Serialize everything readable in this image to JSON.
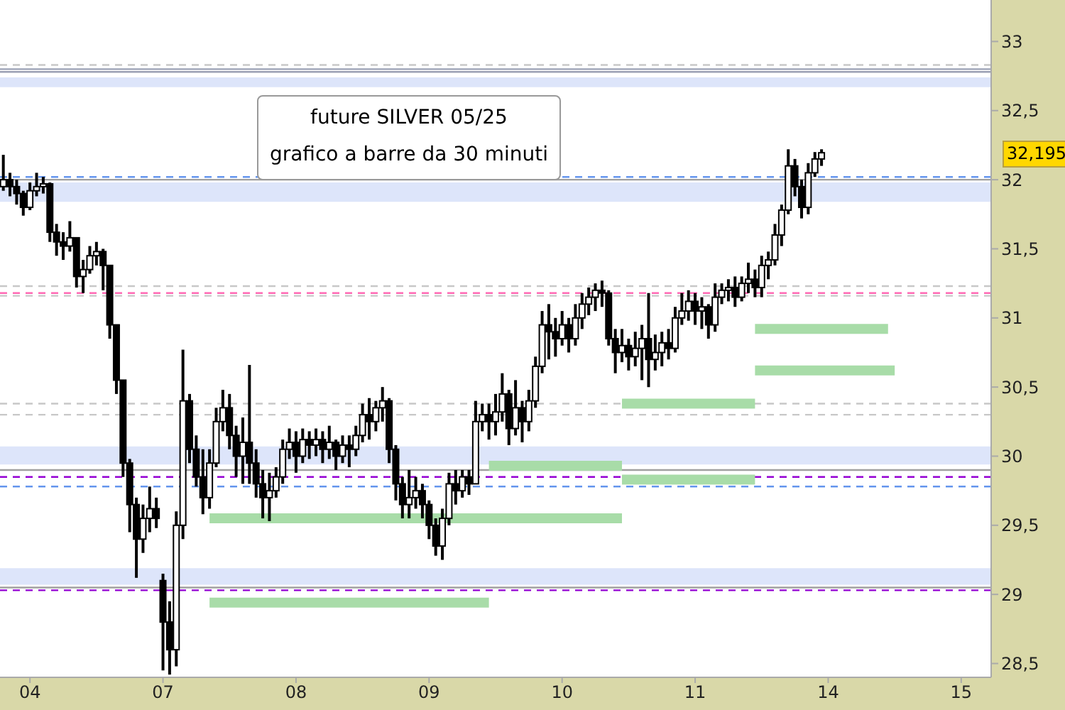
{
  "chart_data": {
    "type": "candlestick",
    "title": "future SILVER 05/25",
    "subtitle": "grafico a barre da 30 minuti",
    "categories": [
      null,
      null,
      null,
      null,
      "04",
      null,
      null,
      null,
      null,
      null,
      null,
      null,
      null,
      null,
      null,
      null,
      null,
      null,
      null,
      null,
      null,
      null,
      null,
      null,
      "07",
      null,
      null,
      null,
      null,
      null,
      null,
      null,
      null,
      null,
      null,
      null,
      null,
      null,
      null,
      null,
      null,
      null,
      null,
      null,
      "08",
      null,
      null,
      null,
      null,
      null,
      null,
      null,
      null,
      null,
      null,
      null,
      null,
      null,
      null,
      null,
      null,
      null,
      null,
      null,
      "09",
      null,
      null,
      null,
      null,
      null,
      null,
      null,
      null,
      null,
      null,
      null,
      null,
      null,
      null,
      null,
      null,
      null,
      null,
      null,
      "10",
      null,
      null,
      null,
      null,
      null,
      null,
      null,
      null,
      null,
      null,
      null,
      null,
      null,
      null,
      null,
      null,
      null,
      null,
      null,
      "11",
      null,
      null,
      null,
      null,
      null,
      null,
      null,
      null,
      null,
      null,
      null,
      null,
      null,
      null,
      null,
      null,
      null,
      null,
      null,
      "14",
      null,
      null,
      null,
      null,
      null,
      null,
      null,
      null,
      null,
      null,
      null,
      null,
      null,
      null,
      null,
      null,
      null,
      null,
      null,
      "15",
      null,
      null,
      null,
      null
    ],
    "ohlc": [
      [
        31.95,
        32.18,
        31.92,
        32.0
      ],
      [
        32.0,
        32.05,
        31.88,
        31.95
      ],
      [
        31.95,
        32.0,
        31.82,
        31.9
      ],
      [
        31.9,
        31.92,
        31.74,
        31.8
      ],
      [
        31.8,
        31.98,
        31.78,
        31.92
      ],
      [
        31.92,
        32.05,
        31.88,
        31.95
      ],
      [
        31.95,
        32.02,
        31.9,
        31.97
      ],
      [
        31.97,
        31.98,
        31.55,
        31.62
      ],
      [
        31.62,
        31.68,
        31.45,
        31.55
      ],
      [
        31.55,
        31.62,
        31.42,
        31.52
      ],
      [
        31.52,
        31.7,
        31.48,
        31.58
      ],
      [
        31.58,
        31.58,
        31.22,
        31.3
      ],
      [
        31.3,
        31.42,
        31.18,
        31.35
      ],
      [
        31.35,
        31.52,
        31.32,
        31.45
      ],
      [
        31.45,
        31.55,
        31.38,
        31.48
      ],
      [
        31.48,
        31.5,
        31.2,
        31.38
      ],
      [
        31.38,
        31.38,
        30.85,
        30.95
      ],
      [
        30.95,
        30.95,
        30.45,
        30.55
      ],
      [
        30.55,
        30.55,
        29.85,
        29.95
      ],
      [
        29.95,
        29.98,
        29.45,
        29.65
      ],
      [
        29.65,
        29.7,
        29.12,
        29.4
      ],
      [
        29.4,
        29.65,
        29.3,
        29.55
      ],
      [
        29.55,
        29.78,
        29.45,
        29.62
      ],
      [
        29.62,
        29.7,
        29.48,
        29.55
      ],
      [
        29.1,
        29.15,
        28.45,
        28.8
      ],
      [
        28.8,
        28.95,
        28.42,
        28.6
      ],
      [
        28.6,
        29.6,
        28.48,
        29.5
      ],
      [
        29.5,
        30.77,
        29.4,
        30.4
      ],
      [
        30.4,
        30.45,
        29.95,
        30.05
      ],
      [
        30.05,
        30.15,
        29.78,
        29.85
      ],
      [
        29.85,
        30.05,
        29.58,
        29.7
      ],
      [
        29.7,
        30.05,
        29.62,
        29.95
      ],
      [
        29.95,
        30.35,
        29.92,
        30.25
      ],
      [
        30.25,
        30.48,
        30.18,
        30.35
      ],
      [
        30.35,
        30.45,
        30.05,
        30.15
      ],
      [
        30.15,
        30.22,
        29.85,
        30.0
      ],
      [
        30.0,
        30.28,
        29.8,
        30.1
      ],
      [
        30.1,
        30.66,
        29.8,
        29.95
      ],
      [
        29.95,
        30.05,
        29.7,
        29.8
      ],
      [
        29.8,
        29.9,
        29.55,
        29.7
      ],
      [
        29.7,
        29.88,
        29.53,
        29.75
      ],
      [
        29.75,
        29.92,
        29.7,
        29.85
      ],
      [
        29.85,
        30.12,
        29.8,
        30.05
      ],
      [
        30.05,
        30.2,
        29.98,
        30.1
      ],
      [
        30.1,
        30.18,
        29.88,
        30.0
      ],
      [
        30.0,
        30.2,
        29.95,
        30.12
      ],
      [
        30.12,
        30.18,
        29.98,
        30.08
      ],
      [
        30.08,
        30.2,
        30.0,
        30.12
      ],
      [
        30.12,
        30.18,
        29.95,
        30.05
      ],
      [
        30.05,
        30.22,
        29.98,
        30.1
      ],
      [
        30.1,
        30.12,
        29.9,
        30.0
      ],
      [
        30.0,
        30.15,
        29.95,
        30.08
      ],
      [
        30.08,
        30.15,
        29.92,
        30.05
      ],
      [
        30.05,
        30.22,
        30.0,
        30.15
      ],
      [
        30.15,
        30.38,
        30.1,
        30.3
      ],
      [
        30.3,
        30.42,
        30.12,
        30.25
      ],
      [
        30.25,
        30.4,
        30.18,
        30.35
      ],
      [
        30.35,
        30.5,
        30.25,
        30.4
      ],
      [
        30.4,
        30.42,
        29.95,
        30.05
      ],
      [
        30.05,
        30.08,
        29.68,
        29.8
      ],
      [
        29.8,
        29.85,
        29.55,
        29.65
      ],
      [
        29.65,
        29.9,
        29.55,
        29.7
      ],
      [
        29.7,
        29.85,
        29.62,
        29.75
      ],
      [
        29.75,
        29.8,
        29.55,
        29.65
      ],
      [
        29.65,
        29.68,
        29.4,
        29.5
      ],
      [
        29.5,
        29.55,
        29.28,
        29.35
      ],
      [
        29.35,
        29.62,
        29.25,
        29.55
      ],
      [
        29.55,
        29.88,
        29.5,
        29.8
      ],
      [
        29.8,
        29.9,
        29.65,
        29.75
      ],
      [
        29.75,
        29.9,
        29.7,
        29.85
      ],
      [
        29.85,
        29.9,
        29.72,
        29.8
      ],
      [
        29.8,
        30.4,
        29.8,
        30.25
      ],
      [
        30.25,
        30.38,
        30.18,
        30.3
      ],
      [
        30.3,
        30.38,
        30.12,
        30.25
      ],
      [
        30.25,
        30.45,
        30.15,
        30.32
      ],
      [
        30.32,
        30.6,
        30.25,
        30.45
      ],
      [
        30.45,
        30.48,
        30.08,
        30.2
      ],
      [
        30.2,
        30.55,
        30.15,
        30.35
      ],
      [
        30.35,
        30.4,
        30.1,
        30.25
      ],
      [
        30.25,
        30.48,
        30.18,
        30.4
      ],
      [
        30.4,
        30.72,
        30.35,
        30.65
      ],
      [
        30.65,
        31.05,
        30.6,
        30.95
      ],
      [
        30.95,
        31.1,
        30.7,
        30.9
      ],
      [
        30.9,
        31.0,
        30.72,
        30.85
      ],
      [
        30.85,
        31.05,
        30.8,
        30.95
      ],
      [
        30.95,
        31.0,
        30.75,
        30.85
      ],
      [
        30.85,
        31.1,
        30.8,
        31.0
      ],
      [
        31.0,
        31.18,
        30.92,
        31.1
      ],
      [
        31.1,
        31.22,
        31.02,
        31.15
      ],
      [
        31.15,
        31.25,
        31.05,
        31.2
      ],
      [
        31.2,
        31.27,
        31.08,
        31.18
      ],
      [
        31.18,
        31.2,
        30.8,
        30.85
      ],
      [
        30.85,
        30.92,
        30.6,
        30.75
      ],
      [
        30.75,
        30.92,
        30.68,
        30.8
      ],
      [
        30.8,
        30.85,
        30.62,
        30.72
      ],
      [
        30.72,
        30.9,
        30.65,
        30.78
      ],
      [
        30.78,
        30.95,
        30.55,
        30.85
      ],
      [
        30.85,
        31.18,
        30.5,
        30.7
      ],
      [
        30.7,
        30.88,
        30.62,
        30.75
      ],
      [
        30.75,
        30.9,
        30.65,
        30.82
      ],
      [
        30.82,
        30.92,
        30.7,
        30.78
      ],
      [
        30.78,
        31.08,
        30.75,
        31.0
      ],
      [
        31.0,
        31.18,
        30.95,
        31.05
      ],
      [
        31.05,
        31.2,
        30.98,
        31.12
      ],
      [
        31.12,
        31.18,
        30.95,
        31.05
      ],
      [
        31.05,
        31.15,
        30.92,
        31.08
      ],
      [
        31.08,
        31.1,
        30.85,
        30.95
      ],
      [
        30.95,
        31.25,
        30.9,
        31.15
      ],
      [
        31.15,
        31.25,
        31.1,
        31.2
      ],
      [
        31.2,
        31.28,
        31.12,
        31.22
      ],
      [
        31.22,
        31.3,
        31.08,
        31.15
      ],
      [
        31.15,
        31.3,
        31.12,
        31.25
      ],
      [
        31.25,
        31.4,
        31.18,
        31.28
      ],
      [
        31.28,
        31.35,
        31.15,
        31.22
      ],
      [
        31.22,
        31.45,
        31.15,
        31.38
      ],
      [
        31.38,
        31.48,
        31.28,
        31.42
      ],
      [
        31.42,
        31.68,
        31.38,
        31.6
      ],
      [
        31.6,
        31.82,
        31.52,
        31.78
      ],
      [
        31.78,
        32.22,
        31.75,
        32.1
      ],
      [
        32.1,
        32.15,
        31.88,
        31.95
      ],
      [
        31.95,
        32.0,
        31.72,
        31.8
      ],
      [
        31.8,
        32.12,
        31.75,
        32.05
      ],
      [
        32.05,
        32.2,
        32.02,
        32.15
      ],
      [
        32.15,
        32.22,
        32.1,
        32.195
      ],
      null,
      null,
      null,
      null,
      null,
      null,
      null,
      null,
      null,
      null,
      null,
      null,
      null,
      null,
      null,
      null,
      null,
      null,
      null,
      null,
      null,
      null,
      null,
      null,
      null
    ],
    "color": "#000000",
    "series": [
      {
        "type": "line",
        "color": "#a8dca8",
        "values": [
          null,
          null,
          null,
          null,
          null,
          null,
          null,
          null,
          null,
          null,
          null,
          null,
          null,
          null,
          null,
          null,
          null,
          null,
          null,
          null,
          null,
          null,
          null,
          null,
          null,
          null,
          null,
          null,
          null,
          null,
          null,
          29.55,
          29.55,
          29.55,
          29.55,
          29.55,
          29.55,
          29.55,
          29.55,
          29.55,
          29.55,
          29.55,
          29.55,
          29.55,
          29.55,
          29.55,
          29.55,
          29.55,
          29.55,
          29.55,
          29.55,
          29.55,
          29.55,
          29.55,
          29.55,
          29.55,
          29.55,
          29.55,
          29.55,
          29.55,
          29.55,
          29.55,
          29.55,
          29.55,
          29.55,
          29.55,
          29.55,
          29.55,
          29.55,
          29.55,
          29.55,
          29.55,
          29.55,
          29.55,
          29.55,
          29.55,
          29.55,
          29.55,
          29.55,
          29.55,
          29.55,
          29.55,
          29.55,
          29.55,
          29.55,
          29.55,
          29.55,
          29.55,
          29.55,
          29.55,
          29.55,
          29.55,
          29.55,
          29.55,
          null,
          null,
          null,
          null,
          null,
          null,
          null,
          null,
          null,
          null,
          null,
          null,
          null,
          null,
          null,
          null,
          null,
          null,
          null,
          null,
          null,
          null,
          null,
          null,
          null,
          null,
          null,
          null,
          null,
          null,
          null,
          null,
          null,
          null,
          null,
          null,
          null,
          null,
          null,
          null,
          null,
          null,
          null,
          null,
          null,
          null,
          null,
          null,
          null,
          null,
          null,
          null,
          null,
          null,
          null
        ]
      },
      {
        "type": "line",
        "color": "#a8dca8",
        "values": [
          null,
          null,
          null,
          null,
          null,
          null,
          null,
          null,
          null,
          null,
          null,
          null,
          null,
          null,
          null,
          null,
          null,
          null,
          null,
          null,
          null,
          null,
          null,
          null,
          null,
          null,
          null,
          null,
          null,
          null,
          null,
          28.94,
          28.94,
          28.94,
          28.94,
          28.94,
          28.94,
          28.94,
          28.94,
          28.94,
          28.94,
          28.94,
          28.94,
          28.94,
          28.94,
          28.94,
          28.94,
          28.94,
          28.94,
          28.94,
          28.94,
          28.94,
          28.94,
          28.94,
          28.94,
          28.94,
          28.94,
          28.94,
          28.94,
          28.94,
          28.94,
          28.94,
          28.94,
          28.94,
          28.94,
          28.94,
          28.94,
          28.94,
          28.94,
          28.94,
          28.94,
          28.94,
          28.94,
          28.94,
          null,
          null,
          null,
          null,
          null,
          null,
          null,
          null,
          null,
          null,
          null,
          null,
          null,
          null,
          null,
          null,
          null,
          null,
          null,
          null,
          null,
          null,
          null,
          null,
          null,
          null,
          null,
          null,
          null,
          null,
          null,
          null,
          null,
          null,
          null,
          null,
          null,
          null,
          null,
          null,
          null,
          null,
          null,
          null,
          null,
          null,
          null,
          null,
          null,
          null,
          null,
          null,
          null,
          null,
          null,
          null,
          null,
          null,
          null,
          null,
          null,
          null,
          null,
          null,
          null,
          null,
          null,
          null,
          null,
          null,
          null,
          null,
          null,
          null,
          null
        ]
      },
      {
        "type": "line",
        "color": "#a8dca8",
        "values": [
          null,
          null,
          null,
          null,
          null,
          null,
          null,
          null,
          null,
          null,
          null,
          null,
          null,
          null,
          null,
          null,
          null,
          null,
          null,
          null,
          null,
          null,
          null,
          null,
          null,
          null,
          null,
          null,
          null,
          null,
          null,
          null,
          null,
          null,
          null,
          null,
          null,
          null,
          null,
          null,
          null,
          null,
          null,
          null,
          null,
          null,
          null,
          null,
          null,
          null,
          null,
          null,
          null,
          null,
          null,
          null,
          null,
          null,
          null,
          null,
          null,
          null,
          null,
          null,
          null,
          null,
          null,
          null,
          null,
          null,
          null,
          null,
          null,
          29.93,
          29.93,
          29.93,
          29.93,
          29.93,
          29.93,
          29.93,
          29.93,
          29.93,
          29.93,
          29.93,
          29.93,
          29.93,
          29.93,
          29.93,
          29.93,
          29.93,
          29.93,
          29.93,
          29.93,
          29.93,
          null,
          null,
          null,
          null,
          null,
          null,
          null,
          null,
          null,
          null,
          null,
          null,
          null,
          null,
          null,
          null,
          null,
          null,
          null,
          null,
          null,
          null,
          null,
          null,
          null,
          null,
          null,
          null,
          null,
          null,
          null,
          null,
          null,
          null,
          null,
          null,
          null,
          null,
          null,
          null,
          null,
          null,
          null,
          null,
          null,
          null,
          null,
          null,
          null,
          null,
          null,
          null,
          null,
          null,
          null
        ]
      },
      {
        "type": "line",
        "color": "#a8dca8",
        "values": [
          null,
          null,
          null,
          null,
          null,
          null,
          null,
          null,
          null,
          null,
          null,
          null,
          null,
          null,
          null,
          null,
          null,
          null,
          null,
          null,
          null,
          null,
          null,
          null,
          null,
          null,
          null,
          null,
          null,
          null,
          null,
          null,
          null,
          null,
          null,
          null,
          null,
          null,
          null,
          null,
          null,
          null,
          null,
          null,
          null,
          null,
          null,
          null,
          null,
          null,
          null,
          null,
          null,
          null,
          null,
          null,
          null,
          null,
          null,
          null,
          null,
          null,
          null,
          null,
          null,
          null,
          null,
          null,
          null,
          null,
          null,
          null,
          null,
          null,
          null,
          null,
          null,
          null,
          null,
          null,
          null,
          null,
          null,
          null,
          null,
          null,
          null,
          null,
          null,
          null,
          null,
          null,
          null,
          30.38,
          30.38,
          30.38,
          30.38,
          30.38,
          30.38,
          30.38,
          30.38,
          30.38,
          30.38,
          30.38,
          30.38,
          30.38,
          30.38,
          30.38,
          30.38,
          30.38,
          30.38,
          30.38,
          30.38,
          30.38,
          null,
          null,
          null,
          null,
          null,
          null,
          null,
          null,
          null,
          null,
          null,
          null,
          null,
          null,
          null,
          null,
          null,
          null,
          null,
          null,
          null,
          null,
          null,
          null,
          null,
          null,
          null,
          null,
          null,
          null,
          null,
          null,
          null,
          null,
          null
        ]
      },
      {
        "type": "line",
        "color": "#a8dca8",
        "values": [
          null,
          null,
          null,
          null,
          null,
          null,
          null,
          null,
          null,
          null,
          null,
          null,
          null,
          null,
          null,
          null,
          null,
          null,
          null,
          null,
          null,
          null,
          null,
          null,
          null,
          null,
          null,
          null,
          null,
          null,
          null,
          null,
          null,
          null,
          null,
          null,
          null,
          null,
          null,
          null,
          null,
          null,
          null,
          null,
          null,
          null,
          null,
          null,
          null,
          null,
          null,
          null,
          null,
          null,
          null,
          null,
          null,
          null,
          null,
          null,
          null,
          null,
          null,
          null,
          null,
          null,
          null,
          null,
          null,
          null,
          null,
          null,
          null,
          null,
          null,
          null,
          null,
          null,
          null,
          null,
          null,
          null,
          null,
          null,
          null,
          null,
          null,
          null,
          null,
          null,
          null,
          null,
          null,
          29.83,
          29.83,
          29.83,
          29.83,
          29.83,
          29.83,
          29.83,
          29.83,
          29.83,
          29.83,
          29.83,
          29.83,
          29.83,
          29.83,
          29.83,
          29.83,
          29.83,
          29.83,
          29.83,
          29.83,
          29.83,
          null,
          null,
          null,
          null,
          null,
          null,
          null,
          null,
          null,
          null,
          null,
          null,
          null,
          null,
          null,
          null,
          null,
          null,
          null,
          null,
          null,
          null,
          null,
          null,
          null,
          null,
          null,
          null,
          null,
          null,
          null,
          null,
          null,
          null,
          null
        ]
      },
      {
        "type": "line",
        "color": "#a8dca8",
        "values": [
          null,
          null,
          null,
          null,
          null,
          null,
          null,
          null,
          null,
          null,
          null,
          null,
          null,
          null,
          null,
          null,
          null,
          null,
          null,
          null,
          null,
          null,
          null,
          null,
          null,
          null,
          null,
          null,
          null,
          null,
          null,
          null,
          null,
          null,
          null,
          null,
          null,
          null,
          null,
          null,
          null,
          null,
          null,
          null,
          null,
          null,
          null,
          null,
          null,
          null,
          null,
          null,
          null,
          null,
          null,
          null,
          null,
          null,
          null,
          null,
          null,
          null,
          null,
          null,
          null,
          null,
          null,
          null,
          null,
          null,
          null,
          null,
          null,
          null,
          null,
          null,
          null,
          null,
          null,
          null,
          null,
          null,
          null,
          null,
          null,
          null,
          null,
          null,
          null,
          null,
          null,
          null,
          null,
          null,
          null,
          null,
          null,
          null,
          null,
          null,
          null,
          null,
          null,
          null,
          null,
          null,
          null,
          null,
          null,
          null,
          null,
          null,
          null,
          30.92,
          30.92,
          30.92,
          30.92,
          30.92,
          30.92,
          30.92,
          30.92,
          30.92,
          30.92,
          30.92,
          30.92,
          30.92,
          30.92,
          30.92,
          30.92,
          30.92,
          30.92,
          30.92,
          30.92,
          30.92,
          null,
          null,
          null,
          null,
          null,
          null,
          null,
          null,
          null,
          null,
          null,
          null,
          null,
          null,
          null
        ]
      },
      {
        "type": "line",
        "color": "#a8dca8",
        "values": [
          null,
          null,
          null,
          null,
          null,
          null,
          null,
          null,
          null,
          null,
          null,
          null,
          null,
          null,
          null,
          null,
          null,
          null,
          null,
          null,
          null,
          null,
          null,
          null,
          null,
          null,
          null,
          null,
          null,
          null,
          null,
          null,
          null,
          null,
          null,
          null,
          null,
          null,
          null,
          null,
          null,
          null,
          null,
          null,
          null,
          null,
          null,
          null,
          null,
          null,
          null,
          null,
          null,
          null,
          null,
          null,
          null,
          null,
          null,
          null,
          null,
          null,
          null,
          null,
          null,
          null,
          null,
          null,
          null,
          null,
          null,
          null,
          null,
          null,
          null,
          null,
          null,
          null,
          null,
          null,
          null,
          null,
          null,
          null,
          null,
          null,
          null,
          null,
          null,
          null,
          null,
          null,
          null,
          null,
          null,
          null,
          null,
          null,
          null,
          null,
          null,
          null,
          null,
          null,
          null,
          null,
          null,
          null,
          null,
          null,
          null,
          null,
          null,
          30.62,
          30.62,
          30.62,
          30.62,
          30.62,
          30.62,
          30.62,
          30.62,
          30.62,
          30.62,
          30.62,
          30.62,
          30.62,
          30.62,
          30.62,
          30.62,
          30.62,
          30.62,
          30.62,
          30.62,
          30.62,
          30.62,
          null,
          null,
          null,
          null,
          null,
          null,
          null,
          null,
          null,
          null,
          null,
          null,
          null,
          null
        ]
      }
    ],
    "marker": "none",
    "bands": [
      {
        "axis": "y",
        "from": 32.67,
        "to": 32.74,
        "color": "#dde5fa"
      },
      {
        "axis": "y",
        "from": 31.84,
        "to": 31.98,
        "color": "#dde5fa"
      },
      {
        "axis": "y",
        "from": 29.94,
        "to": 30.07,
        "color": "#dde5fa"
      },
      {
        "axis": "y",
        "from": 29.07,
        "to": 29.19,
        "color": "#dde5fa"
      }
    ],
    "ref_lines": [
      {
        "axis": "y",
        "value": 32.83,
        "color": "#c8c8c8",
        "line_style": "dashed"
      },
      {
        "axis": "y",
        "value": 32.8,
        "color": "#9aa0b4",
        "line_style": "solid"
      },
      {
        "axis": "y",
        "value": 32.78,
        "color": "#9aa0b4",
        "line_style": "solid"
      },
      {
        "axis": "y",
        "value": 32.02,
        "color": "#6495ed",
        "line_style": "dashed"
      },
      {
        "axis": "y",
        "value": 32.0,
        "color": "#a0a0a0",
        "line_style": "solid"
      },
      {
        "axis": "y",
        "value": 31.23,
        "color": "#c8c8c8",
        "line_style": "dashed"
      },
      {
        "axis": "y",
        "value": 31.18,
        "color": "#ff69b4",
        "line_style": "dashed"
      },
      {
        "axis": "y",
        "value": 31.16,
        "color": "#c8c8c8",
        "line_style": "dashed"
      },
      {
        "axis": "y",
        "value": 30.38,
        "color": "#c8c8c8",
        "line_style": "dashed"
      },
      {
        "axis": "y",
        "value": 30.3,
        "color": "#c8c8c8",
        "line_style": "dashed"
      },
      {
        "axis": "y",
        "value": 29.9,
        "color": "#a0a0a0",
        "line_style": "solid"
      },
      {
        "axis": "y",
        "value": 29.85,
        "color": "#9400d3",
        "line_style": "dashed"
      },
      {
        "axis": "y",
        "value": 29.78,
        "color": "#6495ed",
        "line_style": "dashed"
      },
      {
        "axis": "y",
        "value": 29.05,
        "color": "#a0a0a0",
        "line_style": "solid"
      },
      {
        "axis": "y",
        "value": 29.03,
        "color": "#9400d3",
        "line_style": "dashed"
      }
    ],
    "annotations": [
      "32,195"
    ],
    "ylim": [
      28.4,
      33.3
    ],
    "yticks": [
      {
        "value": 28.5,
        "label": "28,5"
      },
      29,
      {
        "value": 29.5,
        "label": "29,5"
      },
      30,
      {
        "value": 30.5,
        "label": "30,5"
      },
      31,
      {
        "value": 31.5,
        "label": "31,5"
      },
      32,
      {
        "value": 32.5,
        "label": "32,5"
      },
      33
    ],
    "legend": false
  }
}
